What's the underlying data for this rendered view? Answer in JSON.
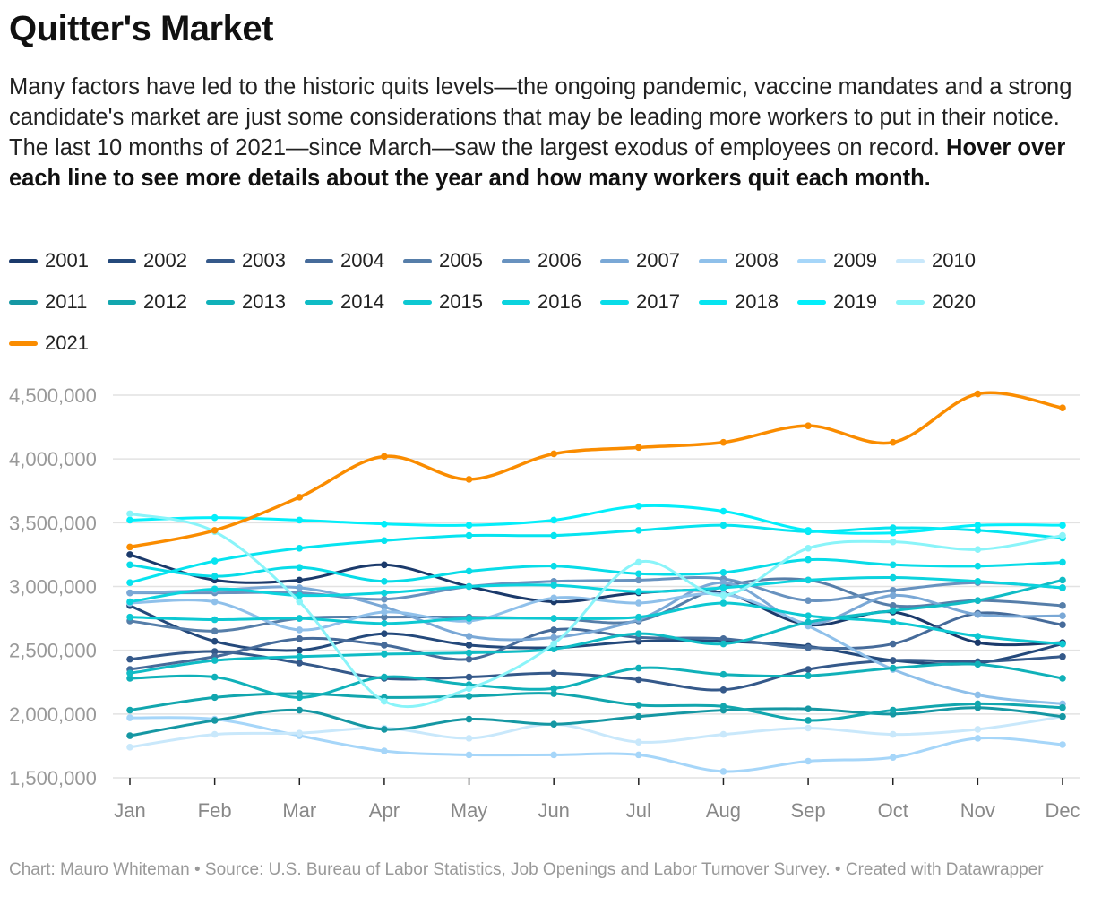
{
  "title": "Quitter's Market",
  "description": "Many factors have led to the historic quits levels—the ongoing pandemic, vaccine mandates and a strong candidate's market are just some considerations that may be leading more workers to put in their notice. The last 10 months of 2021—since March—saw the largest exodus of employees on record.",
  "description_bold": "Hover over each line to see more details about the year and how many workers quit each month.",
  "footer": "Chart: Mauro Whiteman • Source: U.S. Bureau of Labor Statistics, Job Openings and Labor Turnover Survey. • Created with Datawrapper",
  "chart_data": {
    "type": "line",
    "title": "Quitter's Market",
    "xlabel": "",
    "ylabel": "",
    "categories": [
      "Jan",
      "Feb",
      "Mar",
      "Apr",
      "May",
      "Jun",
      "Jul",
      "Aug",
      "Sep",
      "Oct",
      "Nov",
      "Dec"
    ],
    "ylim": [
      1500000,
      4500000
    ],
    "yticks": [
      1500000,
      2000000,
      2500000,
      3000000,
      3500000,
      4000000,
      4500000
    ],
    "ytick_labels": [
      "1,500,000",
      "2,000,000",
      "2,500,000",
      "3,000,000",
      "3,500,000",
      "4,000,000",
      "4,500,000"
    ],
    "grid": true,
    "legend_position": "top",
    "series": [
      {
        "name": "2001",
        "color": "#1b3a6b",
        "values": [
          3250000,
          3050000,
          3050000,
          3170000,
          3000000,
          2880000,
          2950000,
          2950000,
          2700000,
          2800000,
          2560000,
          2560000
        ]
      },
      {
        "name": "2002",
        "color": "#24497b",
        "values": [
          2850000,
          2570000,
          2500000,
          2630000,
          2540000,
          2520000,
          2570000,
          2570000,
          2530000,
          2420000,
          2400000,
          2550000
        ]
      },
      {
        "name": "2003",
        "color": "#35598a",
        "values": [
          2430000,
          2490000,
          2400000,
          2280000,
          2290000,
          2320000,
          2270000,
          2190000,
          2350000,
          2420000,
          2410000,
          2450000
        ]
      },
      {
        "name": "2004",
        "color": "#466b9a",
        "values": [
          2350000,
          2450000,
          2590000,
          2540000,
          2430000,
          2660000,
          2600000,
          2590000,
          2520000,
          2550000,
          2790000,
          2700000
        ]
      },
      {
        "name": "2005",
        "color": "#567ea9",
        "values": [
          2730000,
          2650000,
          2750000,
          2760000,
          2760000,
          2750000,
          2730000,
          3000000,
          3050000,
          2850000,
          2890000,
          2850000
        ]
      },
      {
        "name": "2006",
        "color": "#6892bf",
        "values": [
          2950000,
          2950000,
          2950000,
          2900000,
          3000000,
          3040000,
          3050000,
          3060000,
          2890000,
          2970000,
          3030000,
          2990000
        ]
      },
      {
        "name": "2007",
        "color": "#7aa8d6",
        "values": [
          2950000,
          2970000,
          2990000,
          2840000,
          2610000,
          2600000,
          2740000,
          3030000,
          2710000,
          2930000,
          2780000,
          2770000
        ]
      },
      {
        "name": "2008",
        "color": "#8fc0ea",
        "values": [
          2870000,
          2880000,
          2660000,
          2800000,
          2730000,
          2910000,
          2870000,
          2940000,
          2690000,
          2350000,
          2150000,
          2080000
        ]
      },
      {
        "name": "2009",
        "color": "#a6d6f9",
        "values": [
          1970000,
          1960000,
          1830000,
          1710000,
          1680000,
          1680000,
          1680000,
          1550000,
          1630000,
          1660000,
          1810000,
          1760000
        ]
      },
      {
        "name": "2010",
        "color": "#c9e8fb",
        "values": [
          1740000,
          1840000,
          1850000,
          1890000,
          1810000,
          1920000,
          1780000,
          1840000,
          1890000,
          1840000,
          1880000,
          1980000
        ]
      },
      {
        "name": "2011",
        "color": "#1597a3",
        "values": [
          1830000,
          1950000,
          2030000,
          1880000,
          1960000,
          1920000,
          1980000,
          2030000,
          2040000,
          2000000,
          2050000,
          1980000
        ]
      },
      {
        "name": "2012",
        "color": "#12a6ae",
        "values": [
          2030000,
          2130000,
          2160000,
          2130000,
          2140000,
          2160000,
          2070000,
          2060000,
          1950000,
          2030000,
          2080000,
          2050000
        ]
      },
      {
        "name": "2013",
        "color": "#10b1b9",
        "values": [
          2280000,
          2290000,
          2130000,
          2290000,
          2230000,
          2200000,
          2360000,
          2310000,
          2300000,
          2360000,
          2390000,
          2280000
        ]
      },
      {
        "name": "2014",
        "color": "#0fbcc5",
        "values": [
          2320000,
          2420000,
          2450000,
          2470000,
          2480000,
          2510000,
          2630000,
          2550000,
          2720000,
          2810000,
          2890000,
          3050000
        ]
      },
      {
        "name": "2015",
        "color": "#0dc8d2",
        "values": [
          2760000,
          2740000,
          2750000,
          2710000,
          2750000,
          2750000,
          2760000,
          2870000,
          2770000,
          2720000,
          2610000,
          2550000
        ]
      },
      {
        "name": "2016",
        "color": "#0bd3de",
        "values": [
          2880000,
          2980000,
          2930000,
          2950000,
          3000000,
          3010000,
          2960000,
          2990000,
          3050000,
          3070000,
          3040000,
          2990000
        ]
      },
      {
        "name": "2017",
        "color": "#08dce8",
        "values": [
          3170000,
          3080000,
          3150000,
          3040000,
          3120000,
          3160000,
          3100000,
          3110000,
          3210000,
          3170000,
          3160000,
          3190000
        ]
      },
      {
        "name": "2018",
        "color": "#06e4f0",
        "values": [
          3030000,
          3200000,
          3300000,
          3360000,
          3400000,
          3400000,
          3440000,
          3480000,
          3430000,
          3460000,
          3440000,
          3380000
        ]
      },
      {
        "name": "2019",
        "color": "#03eefa",
        "values": [
          3520000,
          3540000,
          3520000,
          3490000,
          3480000,
          3520000,
          3630000,
          3590000,
          3440000,
          3420000,
          3480000,
          3480000
        ]
      },
      {
        "name": "2020",
        "color": "#8af4f9",
        "values": [
          3570000,
          3430000,
          2880000,
          2100000,
          2200000,
          2550000,
          3190000,
          2930000,
          3300000,
          3350000,
          3290000,
          3400000
        ]
      },
      {
        "name": "2021",
        "color": "#fa8c00",
        "values": [
          3310000,
          3440000,
          3700000,
          4020000,
          3840000,
          4040000,
          4090000,
          4130000,
          4260000,
          4130000,
          4510000,
          4400000
        ]
      }
    ]
  }
}
